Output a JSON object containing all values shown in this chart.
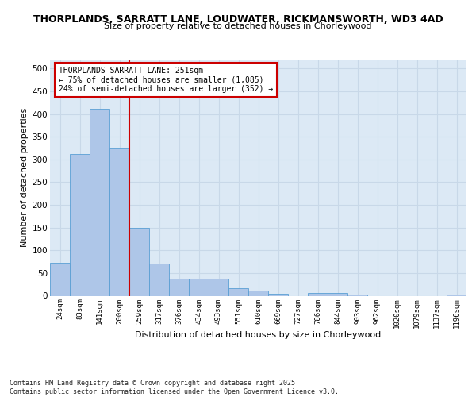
{
  "title1": "THORPLANDS, SARRATT LANE, LOUDWATER, RICKMANSWORTH, WD3 4AD",
  "title2": "Size of property relative to detached houses in Chorleywood",
  "xlabel": "Distribution of detached houses by size in Chorleywood",
  "ylabel": "Number of detached properties",
  "categories": [
    "24sqm",
    "83sqm",
    "141sqm",
    "200sqm",
    "259sqm",
    "317sqm",
    "376sqm",
    "434sqm",
    "493sqm",
    "551sqm",
    "610sqm",
    "669sqm",
    "727sqm",
    "786sqm",
    "844sqm",
    "903sqm",
    "962sqm",
    "1020sqm",
    "1079sqm",
    "1137sqm",
    "1196sqm"
  ],
  "values": [
    72,
    312,
    411,
    325,
    150,
    70,
    37,
    37,
    37,
    16,
    11,
    4,
    0,
    6,
    6,
    3,
    0,
    0,
    0,
    0,
    3
  ],
  "bar_color": "#aec6e8",
  "bar_edge_color": "#5a9fd4",
  "grid_color": "#c8d8e8",
  "bg_color": "#dce9f5",
  "property_line_color": "#cc0000",
  "annotation_text": "THORPLANDS SARRATT LANE: 251sqm\n← 75% of detached houses are smaller (1,085)\n24% of semi-detached houses are larger (352) →",
  "annotation_box_color": "#ffffff",
  "annotation_box_edge": "#cc0000",
  "footer": "Contains HM Land Registry data © Crown copyright and database right 2025.\nContains public sector information licensed under the Open Government Licence v3.0.",
  "ylim": [
    0,
    520
  ],
  "yticks": [
    0,
    50,
    100,
    150,
    200,
    250,
    300,
    350,
    400,
    450,
    500
  ]
}
